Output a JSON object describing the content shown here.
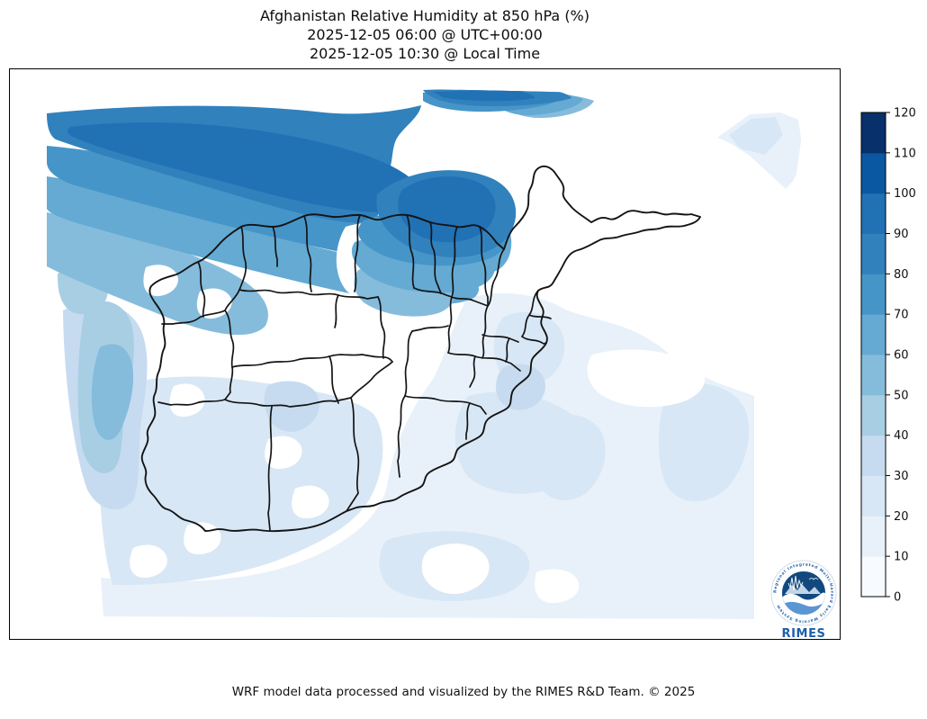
{
  "title": {
    "line1": "Afghanistan Relative Humidity at 850 hPa (%)",
    "line2": "2025-12-05 06:00 @ UTC+00:00",
    "line3": "2025-12-05 10:30 @ Local Time"
  },
  "map": {
    "region": "Afghanistan",
    "variable": "Relative Humidity",
    "pressure_level": "850 hPa",
    "units": "%",
    "overlay": "province boundaries",
    "boundary_color": "#141414",
    "background": "#ffffff"
  },
  "colorbar": {
    "units": "%",
    "min": 0,
    "max": 120,
    "tick_step": 10,
    "ticks": [
      0,
      10,
      20,
      30,
      40,
      50,
      60,
      70,
      80,
      90,
      100,
      110,
      120
    ],
    "levels": [
      {
        "range": "0-10",
        "color": "#f7fbff"
      },
      {
        "range": "10-20",
        "color": "#e8f1fa"
      },
      {
        "range": "20-30",
        "color": "#d8e7f5"
      },
      {
        "range": "30-40",
        "color": "#c6dbef"
      },
      {
        "range": "40-50",
        "color": "#a8cee4"
      },
      {
        "range": "50-60",
        "color": "#85bcdc"
      },
      {
        "range": "60-70",
        "color": "#64aad3"
      },
      {
        "range": "70-80",
        "color": "#4695c8"
      },
      {
        "range": "80-90",
        "color": "#3181bd"
      },
      {
        "range": "90-100",
        "color": "#2171b5"
      },
      {
        "range": "100-110",
        "color": "#0a58a2"
      },
      {
        "range": "110-120",
        "color": "#08306b"
      }
    ]
  },
  "logo": {
    "org": "RIMES",
    "ring_text": "Regional Integrated Multi-Hazard Early Warning System",
    "wordmark": "RIMES",
    "accent_color": "#1d5fa9"
  },
  "footer": {
    "credit": "WRF model data processed and visualized by the RIMES R&D Team. © 2025"
  }
}
